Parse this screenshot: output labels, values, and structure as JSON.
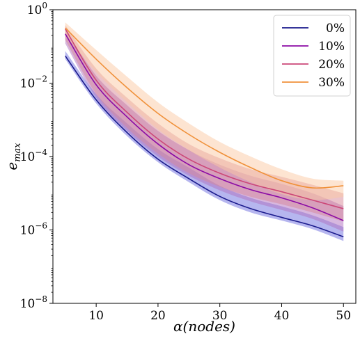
{
  "chart_data": {
    "type": "line",
    "xlabel": "α(nodes)",
    "ylabel": "e_max",
    "y_scale": "log",
    "xlim": [
      3,
      52
    ],
    "ylim": [
      1e-08,
      1
    ],
    "x_ticks": [
      10,
      20,
      30,
      40,
      50
    ],
    "x_tick_labels": [
      "10",
      "20",
      "30",
      "40",
      "50"
    ],
    "y_ticks": [
      1e-08,
      1e-06,
      0.0001,
      0.01,
      1
    ],
    "y_tick_labels": [
      {
        "base": "10",
        "exp": "−8"
      },
      {
        "base": "10",
        "exp": "−6"
      },
      {
        "base": "10",
        "exp": "−4"
      },
      {
        "base": "10",
        "exp": "−2"
      },
      {
        "base": "10",
        "exp": "0"
      }
    ],
    "grid": false,
    "legend_position": "top-right",
    "x": [
      5,
      10,
      15,
      20,
      25,
      30,
      35,
      40,
      45,
      50
    ],
    "series": [
      {
        "name": "0%",
        "color": "#1a1a8c",
        "band_color": "#6e6ee0",
        "values": [
          0.055,
          0.0035,
          0.00045,
          8.5e-05,
          2.5e-05,
          8.2e-06,
          3.8e-06,
          2.2e-06,
          1.3e-06,
          6.5e-07
        ],
        "band_lower": [
          0.045,
          0.0028,
          0.00036,
          7e-05,
          2e-05,
          6.5e-06,
          3e-06,
          1.8e-06,
          1.05e-06,
          5e-07
        ],
        "band_upper": [
          0.075,
          0.005,
          0.0008,
          0.00016,
          5e-05,
          1.6e-05,
          7.5e-06,
          4.4e-06,
          2.5e-06,
          1.2e-06
        ]
      },
      {
        "name": "10%",
        "color": "#8b0aa5",
        "band_color": "#b070c0",
        "values": [
          0.22,
          0.009,
          0.0012,
          0.00022,
          6e-05,
          2.5e-05,
          1.25e-05,
          7.5e-06,
          4e-06,
          1.8e-06
        ],
        "band_lower": [
          0.12,
          0.004,
          0.0005,
          0.0001,
          3e-05,
          1.2e-05,
          6e-06,
          3.5e-06,
          2e-06,
          9e-07
        ],
        "band_upper": [
          0.3,
          0.016,
          0.0025,
          0.0005,
          0.00015,
          6e-05,
          3e-05,
          1.8e-05,
          1e-05,
          4.5e-06
        ]
      },
      {
        "name": "20%",
        "color": "#cc4778",
        "band_color": "#d88898",
        "values": [
          0.3,
          0.012,
          0.0016,
          0.0003,
          8.5e-05,
          3.5e-05,
          1.8e-05,
          1.1e-05,
          6.5e-06,
          3.8e-06
        ],
        "band_lower": [
          0.15,
          0.005,
          0.0006,
          0.00012,
          3.5e-05,
          1.5e-05,
          8e-06,
          5e-06,
          3e-06,
          1.7e-06
        ],
        "band_upper": [
          0.38,
          0.025,
          0.004,
          0.0008,
          0.00022,
          9e-05,
          4.5e-05,
          2.8e-05,
          1.7e-05,
          1e-05
        ]
      },
      {
        "name": "30%",
        "color": "#f0913a",
        "band_color": "#fbc9a4",
        "values": [
          0.32,
          0.045,
          0.0075,
          0.0015,
          0.0004,
          0.00013,
          5e-05,
          2.2e-05,
          1.4e-05,
          1.6e-05
        ],
        "band_lower": [
          0.2,
          0.02,
          0.003,
          0.00055,
          0.00015,
          5e-05,
          2e-05,
          9.5e-06,
          6.5e-06,
          8e-06
        ],
        "band_upper": [
          0.45,
          0.08,
          0.015,
          0.003,
          0.0008,
          0.00025,
          0.0001,
          4.5e-05,
          2.5e-05,
          2.2e-05
        ]
      }
    ]
  }
}
